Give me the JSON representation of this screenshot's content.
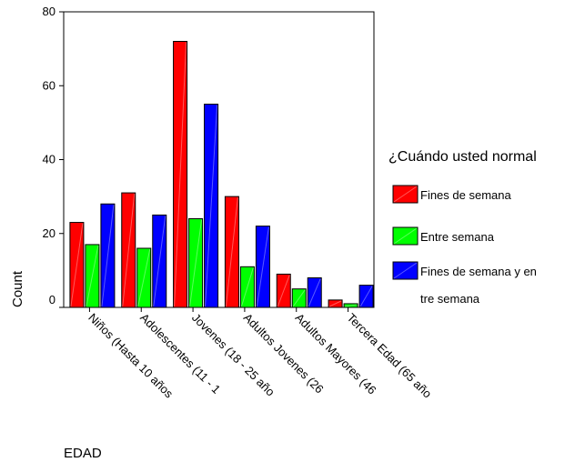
{
  "chart_data": {
    "type": "bar",
    "xlabel": "EDAD",
    "ylabel": "Count",
    "ylim": [
      0,
      80
    ],
    "yticks": [
      0,
      20,
      40,
      60,
      80
    ],
    "grid": false,
    "legend_position": "right",
    "legend_title": "¿Cuándo usted normal",
    "categories": [
      "Niños (Hasta 10 años",
      "Adolescentes (11 - 1",
      "Jovenes (18 - 25 año",
      "Adultos Jovenes (26",
      "Adultos Mayores (46",
      "Tercera Edad (65 año"
    ],
    "series": [
      {
        "name": "Fines de semana",
        "color": "#ff0000",
        "values": [
          23,
          31,
          72,
          30,
          9,
          2
        ]
      },
      {
        "name": "Entre semana",
        "color": "#00ff00",
        "values": [
          17,
          16,
          24,
          11,
          5,
          1
        ]
      },
      {
        "name": "Fines de semana y en tre semana",
        "legend_lines": [
          "Fines de semana y en",
          "tre semana"
        ],
        "color": "#0000ff",
        "values": [
          28,
          25,
          55,
          22,
          8,
          6
        ]
      }
    ]
  }
}
